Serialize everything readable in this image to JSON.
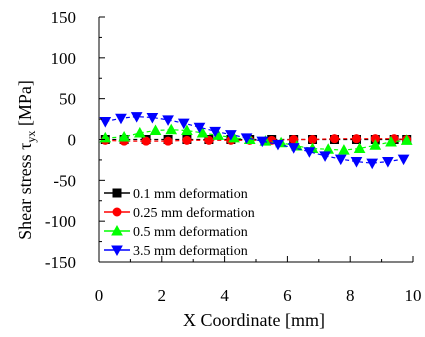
{
  "chart_data": {
    "type": "line",
    "title": "",
    "xlabel": "X Coordinate [mm]",
    "ylabel_main": "Shear stress τ",
    "ylabel_sub": "yx",
    "ylabel_unit": " [MPa]",
    "xlim": [
      0,
      10
    ],
    "ylim": [
      -150,
      150
    ],
    "xticks": [
      0,
      2,
      4,
      6,
      8,
      10
    ],
    "yticks": [
      -150,
      -100,
      -50,
      0,
      50,
      100,
      150
    ],
    "grid": false,
    "legend_position": "bottom-left",
    "series": [
      {
        "name": "0.1   mm deformation",
        "color": "#000000",
        "marker": "square",
        "x": [
          0.2,
          0.8,
          1.5,
          2.2,
          2.8,
          3.5,
          4.2,
          4.8,
          5.5,
          6.2,
          6.8,
          7.5,
          8.2,
          8.8,
          9.4,
          9.8
        ],
        "y": [
          0,
          0,
          0,
          0,
          0,
          0,
          0,
          0,
          0,
          0,
          0,
          0,
          0,
          0,
          0,
          0
        ]
      },
      {
        "name": "0.25 mm deformation",
        "color": "#ff0000",
        "marker": "circle",
        "x": [
          0.2,
          0.8,
          1.5,
          2.2,
          2.8,
          3.5,
          4.2,
          4.8,
          5.5,
          6.2,
          6.8,
          7.5,
          8.2,
          8.8,
          9.4,
          9.8
        ],
        "y": [
          -1,
          -2,
          -2,
          -2,
          -1,
          -1,
          -1,
          -1,
          -1,
          0,
          0,
          1,
          1,
          1,
          1,
          0
        ]
      },
      {
        "name": "0.5   mm deformation",
        "color": "#00ff00",
        "marker": "triangle-up",
        "x": [
          0.2,
          0.8,
          1.3,
          1.8,
          2.3,
          2.8,
          3.3,
          3.8,
          4.3,
          4.8,
          5.3,
          5.8,
          6.3,
          6.8,
          7.3,
          7.8,
          8.3,
          8.8,
          9.3,
          9.8
        ],
        "y": [
          2,
          3,
          8,
          11,
          12,
          11,
          8,
          5,
          2,
          0,
          -2,
          -4,
          -8,
          -11,
          -12,
          -13,
          -11,
          -7,
          -3,
          -1
        ]
      },
      {
        "name": "3.5   mm deformation",
        "color": "#0000ff",
        "marker": "triangle-down",
        "x": [
          0.2,
          0.7,
          1.2,
          1.7,
          2.2,
          2.7,
          3.2,
          3.7,
          4.2,
          4.7,
          5.2,
          5.7,
          6.2,
          6.7,
          7.2,
          7.7,
          8.2,
          8.7,
          9.2,
          9.7
        ],
        "y": [
          22,
          26,
          28,
          27,
          24,
          20,
          15,
          10,
          6,
          2,
          -2,
          -6,
          -10,
          -15,
          -20,
          -24,
          -27,
          -29,
          -27,
          -24
        ]
      }
    ]
  }
}
